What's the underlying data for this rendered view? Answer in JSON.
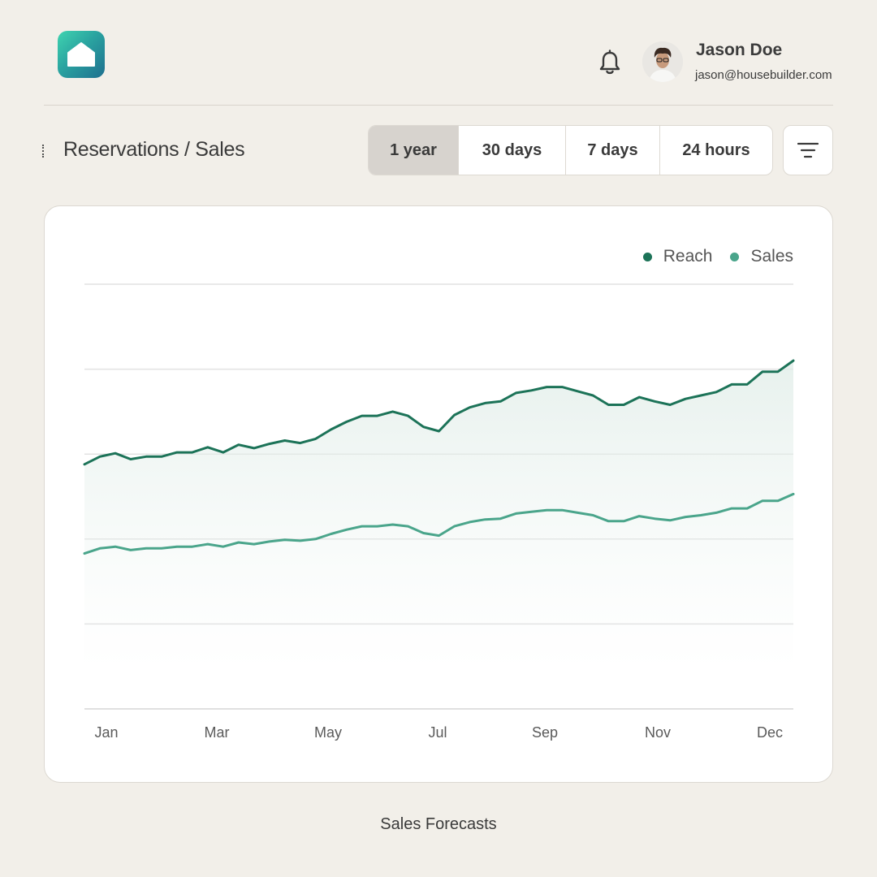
{
  "header": {
    "logo_icon": "house-icon",
    "notification_icon": "bell-icon",
    "user": {
      "name": "Jason Doe",
      "email": "jason@housebuilder.com",
      "avatar_icon": "avatar-portrait"
    }
  },
  "toolbar": {
    "title": "Reservations / Sales",
    "ranges": [
      {
        "label": "1 year",
        "active": true
      },
      {
        "label": "30 days",
        "active": false
      },
      {
        "label": "7 days",
        "active": false
      },
      {
        "label": "24 hours",
        "active": false
      }
    ],
    "filter_icon": "filter-icon"
  },
  "chart_data": {
    "type": "line",
    "title": "",
    "xlabel": "",
    "ylabel": "",
    "x_tick_labels": [
      "Jan",
      "Mar",
      "May",
      "Jul",
      "Sep",
      "Nov",
      "Dec"
    ],
    "grid": true,
    "legend_position": "top-right",
    "y_range": [
      0,
      5
    ],
    "series": [
      {
        "name": "Reach",
        "color": "#1c7358",
        "values": [
          2.88,
          2.97,
          3.01,
          2.94,
          2.97,
          2.97,
          3.02,
          3.02,
          3.08,
          3.02,
          3.11,
          3.07,
          3.12,
          3.16,
          3.13,
          3.18,
          3.29,
          3.38,
          3.45,
          3.45,
          3.5,
          3.45,
          3.32,
          3.27,
          3.46,
          3.55,
          3.6,
          3.62,
          3.72,
          3.75,
          3.79,
          3.79,
          3.74,
          3.69,
          3.58,
          3.58,
          3.67,
          3.62,
          3.58,
          3.65,
          3.69,
          3.73,
          3.82,
          3.82,
          3.97,
          3.97,
          4.1
        ]
      },
      {
        "name": "Sales",
        "color": "#4aa58b",
        "values": [
          1.83,
          1.89,
          1.91,
          1.87,
          1.89,
          1.89,
          1.91,
          1.91,
          1.94,
          1.91,
          1.96,
          1.94,
          1.97,
          1.99,
          1.98,
          2.0,
          2.06,
          2.11,
          2.15,
          2.15,
          2.17,
          2.15,
          2.07,
          2.04,
          2.15,
          2.2,
          2.23,
          2.24,
          2.3,
          2.32,
          2.34,
          2.34,
          2.31,
          2.28,
          2.21,
          2.21,
          2.27,
          2.24,
          2.22,
          2.26,
          2.28,
          2.31,
          2.36,
          2.36,
          2.45,
          2.45,
          2.53
        ]
      }
    ]
  },
  "caption": "Sales Forecasts"
}
